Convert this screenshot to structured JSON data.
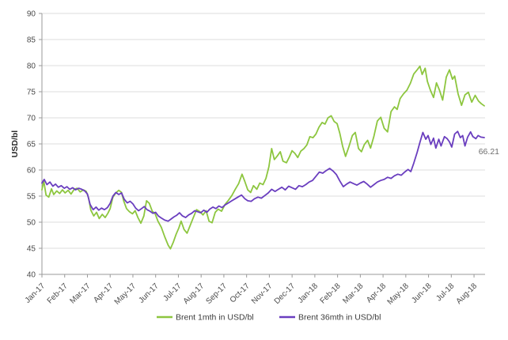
{
  "chart_data": {
    "type": "line",
    "title": "",
    "xlabel": "",
    "ylabel": "USD/bl",
    "ylim": [
      40,
      90
    ],
    "ytick_step": 5,
    "grid": "horizontal",
    "legend_position": "bottom-center",
    "x_unit": "months since Jan-17 tick",
    "x_tick_labels": [
      "Jan-17",
      "Feb-17",
      "Mar-17",
      "Apr-17",
      "May-17",
      "Jun-17",
      "Jul-17",
      "Aug-17",
      "Sep-17",
      "Oct-17",
      "Nov-17",
      "Dec-17",
      "Jan-18",
      "Feb-18",
      "Mar-18",
      "Apr-18",
      "May-18",
      "Jun-18",
      "Jul-18",
      "Aug-18"
    ],
    "annotation": {
      "text": "66.21",
      "series": "Brent 36mth in USD/bl",
      "value": 66.21
    },
    "series": [
      {
        "name": "Brent 1mth in USD/bl",
        "color": "#8dc63f",
        "points": [
          [
            0.0,
            56.2
          ],
          [
            0.08,
            57.9
          ],
          [
            0.18,
            55.2
          ],
          [
            0.3,
            54.8
          ],
          [
            0.42,
            56.4
          ],
          [
            0.52,
            55.3
          ],
          [
            0.65,
            56.0
          ],
          [
            0.78,
            55.5
          ],
          [
            0.9,
            56.2
          ],
          [
            1.02,
            55.6
          ],
          [
            1.15,
            56.1
          ],
          [
            1.28,
            55.4
          ],
          [
            1.42,
            56.3
          ],
          [
            1.55,
            56.5
          ],
          [
            1.68,
            55.8
          ],
          [
            1.82,
            56.2
          ],
          [
            1.95,
            55.9
          ],
          [
            2.05,
            54.7
          ],
          [
            2.15,
            52.3
          ],
          [
            2.28,
            51.2
          ],
          [
            2.4,
            51.9
          ],
          [
            2.52,
            50.7
          ],
          [
            2.65,
            51.5
          ],
          [
            2.78,
            50.9
          ],
          [
            2.9,
            51.7
          ],
          [
            3.0,
            52.6
          ],
          [
            3.12,
            54.8
          ],
          [
            3.25,
            55.6
          ],
          [
            3.38,
            56.1
          ],
          [
            3.5,
            55.7
          ],
          [
            3.6,
            54.0
          ],
          [
            3.72,
            52.6
          ],
          [
            3.85,
            52.0
          ],
          [
            3.98,
            51.6
          ],
          [
            4.1,
            52.2
          ],
          [
            4.22,
            50.9
          ],
          [
            4.35,
            49.8
          ],
          [
            4.48,
            51.2
          ],
          [
            4.6,
            54.1
          ],
          [
            4.72,
            53.6
          ],
          [
            4.85,
            52.1
          ],
          [
            4.98,
            51.6
          ],
          [
            5.1,
            50.2
          ],
          [
            5.25,
            49.0
          ],
          [
            5.4,
            47.2
          ],
          [
            5.55,
            45.6
          ],
          [
            5.65,
            44.9
          ],
          [
            5.78,
            46.2
          ],
          [
            5.9,
            47.7
          ],
          [
            6.02,
            48.9
          ],
          [
            6.12,
            50.2
          ],
          [
            6.25,
            48.6
          ],
          [
            6.38,
            47.9
          ],
          [
            6.52,
            49.4
          ],
          [
            6.65,
            50.8
          ],
          [
            6.8,
            52.4
          ],
          [
            6.95,
            52.0
          ],
          [
            7.08,
            51.4
          ],
          [
            7.22,
            52.2
          ],
          [
            7.35,
            50.2
          ],
          [
            7.48,
            49.9
          ],
          [
            7.62,
            51.9
          ],
          [
            7.75,
            52.5
          ],
          [
            7.9,
            52.1
          ],
          [
            8.05,
            53.4
          ],
          [
            8.2,
            54.2
          ],
          [
            8.35,
            55.1
          ],
          [
            8.5,
            56.3
          ],
          [
            8.65,
            57.4
          ],
          [
            8.8,
            59.2
          ],
          [
            8.92,
            57.8
          ],
          [
            9.05,
            56.2
          ],
          [
            9.18,
            55.7
          ],
          [
            9.3,
            57.0
          ],
          [
            9.45,
            56.3
          ],
          [
            9.58,
            57.5
          ],
          [
            9.72,
            57.2
          ],
          [
            9.85,
            58.4
          ],
          [
            9.98,
            60.6
          ],
          [
            10.1,
            64.1
          ],
          [
            10.22,
            62.0
          ],
          [
            10.35,
            62.7
          ],
          [
            10.48,
            63.5
          ],
          [
            10.6,
            61.7
          ],
          [
            10.75,
            61.4
          ],
          [
            10.88,
            62.5
          ],
          [
            11.0,
            63.7
          ],
          [
            11.12,
            63.2
          ],
          [
            11.25,
            62.4
          ],
          [
            11.38,
            63.6
          ],
          [
            11.52,
            64.1
          ],
          [
            11.65,
            64.8
          ],
          [
            11.78,
            66.4
          ],
          [
            11.92,
            66.2
          ],
          [
            12.05,
            66.9
          ],
          [
            12.18,
            68.2
          ],
          [
            12.32,
            69.1
          ],
          [
            12.45,
            68.8
          ],
          [
            12.58,
            70.0
          ],
          [
            12.72,
            70.4
          ],
          [
            12.85,
            69.3
          ],
          [
            12.98,
            68.9
          ],
          [
            13.1,
            67.0
          ],
          [
            13.22,
            64.6
          ],
          [
            13.35,
            62.6
          ],
          [
            13.5,
            64.5
          ],
          [
            13.65,
            66.6
          ],
          [
            13.78,
            67.2
          ],
          [
            13.92,
            64.1
          ],
          [
            14.05,
            63.5
          ],
          [
            14.18,
            64.9
          ],
          [
            14.32,
            65.7
          ],
          [
            14.45,
            64.2
          ],
          [
            14.6,
            66.5
          ],
          [
            14.75,
            69.4
          ],
          [
            14.9,
            70.1
          ],
          [
            15.05,
            68.0
          ],
          [
            15.2,
            67.3
          ],
          [
            15.35,
            71.2
          ],
          [
            15.5,
            72.1
          ],
          [
            15.62,
            71.6
          ],
          [
            15.75,
            73.7
          ],
          [
            15.9,
            74.6
          ],
          [
            16.05,
            75.3
          ],
          [
            16.2,
            76.6
          ],
          [
            16.35,
            78.4
          ],
          [
            16.5,
            79.2
          ],
          [
            16.62,
            79.9
          ],
          [
            16.72,
            78.3
          ],
          [
            16.85,
            79.5
          ],
          [
            16.95,
            77.0
          ],
          [
            17.08,
            75.3
          ],
          [
            17.22,
            73.9
          ],
          [
            17.35,
            76.7
          ],
          [
            17.48,
            75.3
          ],
          [
            17.62,
            73.4
          ],
          [
            17.78,
            77.8
          ],
          [
            17.92,
            79.2
          ],
          [
            18.05,
            77.4
          ],
          [
            18.15,
            78.0
          ],
          [
            18.3,
            74.6
          ],
          [
            18.45,
            72.4
          ],
          [
            18.6,
            74.4
          ],
          [
            18.75,
            74.9
          ],
          [
            18.9,
            73.0
          ],
          [
            19.05,
            74.3
          ],
          [
            19.2,
            73.2
          ],
          [
            19.32,
            72.7
          ],
          [
            19.45,
            72.3
          ]
        ]
      },
      {
        "name": "Brent 36mth in USD/bl",
        "color": "#6a3ebf",
        "points": [
          [
            0.0,
            57.5
          ],
          [
            0.1,
            58.2
          ],
          [
            0.22,
            57.2
          ],
          [
            0.35,
            57.7
          ],
          [
            0.48,
            56.9
          ],
          [
            0.6,
            57.3
          ],
          [
            0.72,
            56.7
          ],
          [
            0.85,
            57.0
          ],
          [
            0.98,
            56.5
          ],
          [
            1.1,
            56.8
          ],
          [
            1.22,
            56.3
          ],
          [
            1.35,
            56.6
          ],
          [
            1.48,
            56.2
          ],
          [
            1.62,
            56.5
          ],
          [
            1.75,
            56.3
          ],
          [
            1.88,
            56.0
          ],
          [
            2.0,
            55.4
          ],
          [
            2.12,
            53.4
          ],
          [
            2.25,
            52.4
          ],
          [
            2.38,
            52.9
          ],
          [
            2.5,
            52.3
          ],
          [
            2.62,
            52.7
          ],
          [
            2.75,
            52.4
          ],
          [
            2.88,
            52.8
          ],
          [
            3.0,
            53.6
          ],
          [
            3.12,
            55.0
          ],
          [
            3.25,
            55.7
          ],
          [
            3.38,
            55.3
          ],
          [
            3.5,
            55.6
          ],
          [
            3.62,
            54.4
          ],
          [
            3.75,
            53.7
          ],
          [
            3.88,
            54.0
          ],
          [
            4.0,
            53.5
          ],
          [
            4.12,
            52.7
          ],
          [
            4.25,
            52.2
          ],
          [
            4.38,
            52.6
          ],
          [
            4.5,
            53.0
          ],
          [
            4.62,
            52.4
          ],
          [
            4.75,
            52.1
          ],
          [
            4.88,
            51.7
          ],
          [
            5.0,
            51.9
          ],
          [
            5.12,
            51.2
          ],
          [
            5.25,
            50.8
          ],
          [
            5.4,
            50.4
          ],
          [
            5.55,
            50.2
          ],
          [
            5.68,
            50.6
          ],
          [
            5.8,
            51.0
          ],
          [
            5.92,
            51.3
          ],
          [
            6.05,
            51.8
          ],
          [
            6.18,
            51.2
          ],
          [
            6.32,
            50.9
          ],
          [
            6.45,
            51.4
          ],
          [
            6.58,
            51.7
          ],
          [
            6.72,
            52.2
          ],
          [
            6.85,
            52.0
          ],
          [
            6.98,
            51.8
          ],
          [
            7.12,
            52.3
          ],
          [
            7.25,
            51.9
          ],
          [
            7.38,
            52.5
          ],
          [
            7.52,
            52.9
          ],
          [
            7.65,
            52.6
          ],
          [
            7.78,
            53.1
          ],
          [
            7.92,
            52.8
          ],
          [
            8.05,
            53.3
          ],
          [
            8.2,
            53.7
          ],
          [
            8.35,
            54.1
          ],
          [
            8.5,
            54.5
          ],
          [
            8.65,
            54.9
          ],
          [
            8.78,
            55.2
          ],
          [
            8.92,
            54.5
          ],
          [
            9.05,
            54.1
          ],
          [
            9.2,
            54.0
          ],
          [
            9.35,
            54.5
          ],
          [
            9.5,
            54.8
          ],
          [
            9.65,
            54.6
          ],
          [
            9.8,
            55.1
          ],
          [
            9.95,
            55.6
          ],
          [
            10.1,
            56.3
          ],
          [
            10.25,
            55.9
          ],
          [
            10.4,
            56.3
          ],
          [
            10.55,
            56.7
          ],
          [
            10.7,
            56.2
          ],
          [
            10.85,
            56.9
          ],
          [
            11.0,
            56.6
          ],
          [
            11.15,
            56.3
          ],
          [
            11.3,
            57.0
          ],
          [
            11.45,
            56.8
          ],
          [
            11.6,
            57.2
          ],
          [
            11.75,
            57.7
          ],
          [
            11.9,
            58.0
          ],
          [
            12.05,
            58.8
          ],
          [
            12.2,
            59.6
          ],
          [
            12.35,
            59.4
          ],
          [
            12.5,
            59.9
          ],
          [
            12.65,
            60.3
          ],
          [
            12.8,
            59.8
          ],
          [
            12.95,
            59.1
          ],
          [
            13.1,
            57.9
          ],
          [
            13.25,
            56.8
          ],
          [
            13.4,
            57.3
          ],
          [
            13.55,
            57.7
          ],
          [
            13.7,
            57.4
          ],
          [
            13.85,
            57.1
          ],
          [
            14.0,
            57.5
          ],
          [
            14.15,
            57.8
          ],
          [
            14.3,
            57.3
          ],
          [
            14.45,
            56.7
          ],
          [
            14.6,
            57.2
          ],
          [
            14.75,
            57.7
          ],
          [
            14.9,
            58.0
          ],
          [
            15.05,
            58.2
          ],
          [
            15.2,
            58.6
          ],
          [
            15.35,
            58.4
          ],
          [
            15.5,
            58.9
          ],
          [
            15.65,
            59.2
          ],
          [
            15.8,
            59.0
          ],
          [
            15.95,
            59.6
          ],
          [
            16.1,
            60.1
          ],
          [
            16.22,
            59.7
          ],
          [
            16.35,
            61.3
          ],
          [
            16.5,
            63.4
          ],
          [
            16.62,
            65.3
          ],
          [
            16.75,
            67.2
          ],
          [
            16.88,
            65.9
          ],
          [
            16.98,
            66.6
          ],
          [
            17.1,
            64.9
          ],
          [
            17.22,
            66.1
          ],
          [
            17.32,
            64.2
          ],
          [
            17.45,
            65.9
          ],
          [
            17.55,
            64.6
          ],
          [
            17.7,
            66.4
          ],
          [
            17.82,
            66.0
          ],
          [
            17.92,
            65.4
          ],
          [
            18.02,
            64.4
          ],
          [
            18.15,
            66.9
          ],
          [
            18.28,
            67.4
          ],
          [
            18.4,
            66.2
          ],
          [
            18.5,
            66.6
          ],
          [
            18.6,
            64.6
          ],
          [
            18.72,
            66.3
          ],
          [
            18.85,
            67.3
          ],
          [
            18.95,
            66.4
          ],
          [
            19.08,
            66.0
          ],
          [
            19.18,
            66.6
          ],
          [
            19.3,
            66.3
          ],
          [
            19.45,
            66.21
          ]
        ]
      }
    ]
  }
}
